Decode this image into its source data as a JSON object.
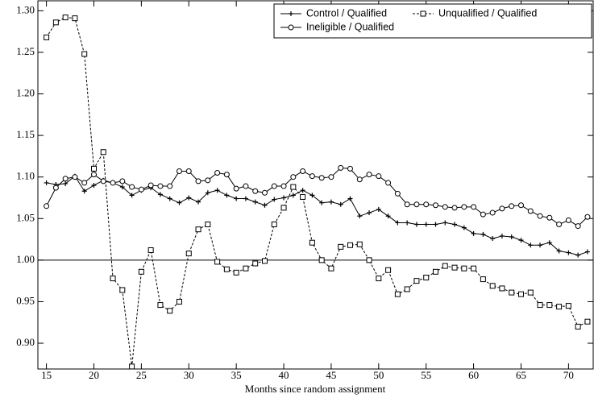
{
  "chart_data": {
    "type": "line",
    "x_label": "Months since random assignment",
    "x": [
      15,
      16,
      17,
      18,
      19,
      20,
      21,
      22,
      23,
      24,
      25,
      26,
      27,
      28,
      29,
      30,
      31,
      32,
      33,
      34,
      35,
      36,
      37,
      38,
      39,
      40,
      41,
      42,
      43,
      44,
      45,
      46,
      47,
      48,
      49,
      50,
      51,
      52,
      53,
      54,
      55,
      56,
      57,
      58,
      59,
      60,
      61,
      62,
      63,
      64,
      65,
      66,
      67,
      68,
      69,
      70,
      71,
      72
    ],
    "xlim": [
      14.1,
      72.6
    ],
    "xticks": [
      15,
      20,
      25,
      30,
      35,
      40,
      45,
      50,
      55,
      60,
      65,
      70
    ],
    "ylim": [
      0.869,
      1.312
    ],
    "yticks": [
      {
        "value": 0.9,
        "label": "0.90"
      },
      0.95,
      {
        "value": 1.0,
        "label": "1.00"
      },
      1.05,
      {
        "value": 1.1,
        "label": "1.10"
      },
      1.15,
      {
        "value": 1.2,
        "label": "1.20"
      },
      1.25,
      {
        "value": 1.3,
        "label": "1.30"
      }
    ],
    "reference_line": 1.0,
    "legend": "upper right",
    "series": [
      {
        "name": "Control / Qualified",
        "color": "#000000",
        "dash": false,
        "marker": "plus",
        "values": [
          1.093,
          1.091,
          1.092,
          1.101,
          1.083,
          1.09,
          1.096,
          1.093,
          1.088,
          1.078,
          1.084,
          1.087,
          1.079,
          1.074,
          1.069,
          1.075,
          1.07,
          1.081,
          1.084,
          1.078,
          1.074,
          1.074,
          1.07,
          1.066,
          1.073,
          1.075,
          1.078,
          1.084,
          1.078,
          1.069,
          1.07,
          1.067,
          1.074,
          1.053,
          1.057,
          1.061,
          1.053,
          1.045,
          1.045,
          1.043,
          1.043,
          1.043,
          1.045,
          1.043,
          1.039,
          1.032,
          1.031,
          1.026,
          1.029,
          1.028,
          1.024,
          1.018,
          1.018,
          1.021,
          1.011,
          1.009,
          1.006,
          1.01
        ]
      },
      {
        "name": "Unqualified / Qualified",
        "color": "#000000",
        "dash": true,
        "marker": "square",
        "values": [
          1.268,
          1.286,
          1.292,
          1.291,
          1.248,
          1.11,
          1.13,
          0.978,
          0.964,
          0.872,
          0.986,
          1.012,
          0.946,
          0.939,
          0.95,
          1.008,
          1.037,
          1.043,
          0.998,
          0.989,
          0.985,
          0.99,
          0.996,
          0.999,
          1.043,
          1.063,
          1.088,
          1.076,
          1.021,
          1.0,
          0.99,
          1.016,
          1.018,
          1.019,
          1.0,
          0.978,
          0.988,
          0.959,
          0.965,
          0.975,
          0.979,
          0.986,
          0.993,
          0.991,
          0.99,
          0.99,
          0.977,
          0.969,
          0.966,
          0.961,
          0.959,
          0.961,
          0.946,
          0.946,
          0.944,
          0.945,
          0.92,
          0.926
        ]
      },
      {
        "name": "Ineligible / Qualified",
        "color": "#000000",
        "dash": false,
        "marker": "circle",
        "values": [
          1.065,
          1.087,
          1.098,
          1.1,
          1.093,
          1.103,
          1.095,
          1.093,
          1.095,
          1.088,
          1.085,
          1.09,
          1.089,
          1.089,
          1.107,
          1.107,
          1.095,
          1.096,
          1.105,
          1.103,
          1.086,
          1.089,
          1.083,
          1.081,
          1.089,
          1.089,
          1.1,
          1.107,
          1.101,
          1.099,
          1.1,
          1.111,
          1.11,
          1.097,
          1.103,
          1.101,
          1.093,
          1.08,
          1.067,
          1.067,
          1.067,
          1.066,
          1.064,
          1.063,
          1.064,
          1.064,
          1.055,
          1.057,
          1.062,
          1.065,
          1.066,
          1.059,
          1.053,
          1.051,
          1.043,
          1.048,
          1.041,
          1.052
        ]
      }
    ]
  }
}
